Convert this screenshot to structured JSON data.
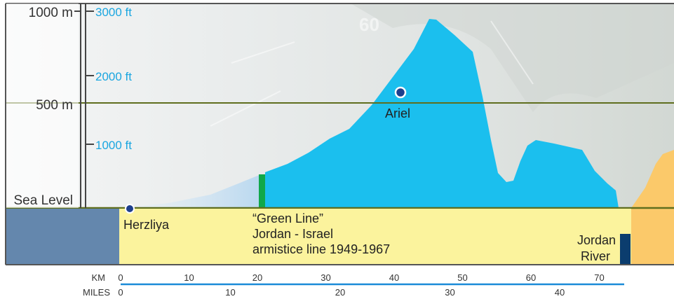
{
  "elevation_axis_m": [
    {
      "label": "1000 m",
      "value": 1000
    },
    {
      "label": "500 m",
      "value": 500
    },
    {
      "label": "Sea Level",
      "value": 0
    }
  ],
  "elevation_axis_ft": [
    {
      "label": "3000 ft",
      "value": 3000
    },
    {
      "label": "2000 ft",
      "value": 2000
    },
    {
      "label": "1000 ft",
      "value": 1000
    }
  ],
  "distance_axis": {
    "km_label": "KM",
    "km_ticks": [
      "0",
      "10",
      "20",
      "30",
      "40",
      "50",
      "60",
      "70"
    ],
    "miles_label": "MILES",
    "miles_ticks": [
      "0",
      "10",
      "20",
      "30",
      "40"
    ]
  },
  "places": {
    "herzliya": "Herzliya",
    "ariel": "Ariel",
    "green_line_1": "“Green Line”",
    "green_line_2": "Jordan - Israel",
    "green_line_3": "armistice line 1949-1967",
    "jordan_river_1": "Jordan",
    "jordan_river_2": "River"
  },
  "background_text": "60",
  "colors": {
    "terrain_west_bank": "#1bbfee",
    "terrain_israel": "#c6def2",
    "terrain_jordan": "#fbc96a",
    "lowland": "#fbf39d",
    "sea": "#6487ad",
    "river": "#0b3d6e",
    "green_line": "#10a84a",
    "gridline": "#5f6e1e",
    "axis_ft": "#1aa6e0",
    "marker": "#1e3f8c",
    "distance_rule": "#1a8bd8"
  }
}
